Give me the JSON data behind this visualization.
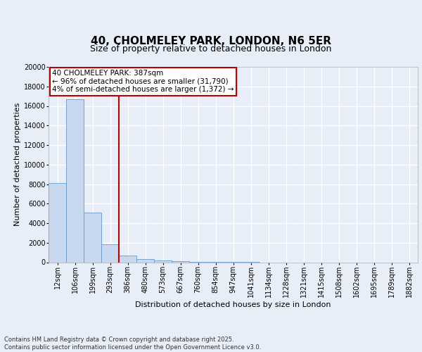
{
  "title1": "40, CHOLMELEY PARK, LONDON, N6 5ER",
  "title2": "Size of property relative to detached houses in London",
  "xlabel": "Distribution of detached houses by size in London",
  "ylabel": "Number of detached properties",
  "categories": [
    "12sqm",
    "106sqm",
    "199sqm",
    "293sqm",
    "386sqm",
    "480sqm",
    "573sqm",
    "667sqm",
    "760sqm",
    "854sqm",
    "947sqm",
    "1041sqm",
    "1134sqm",
    "1228sqm",
    "1321sqm",
    "1415sqm",
    "1508sqm",
    "1602sqm",
    "1695sqm",
    "1789sqm",
    "1882sqm"
  ],
  "values": [
    8100,
    16650,
    5100,
    1820,
    720,
    310,
    160,
    90,
    50,
    20,
    5,
    2,
    0,
    0,
    0,
    0,
    0,
    0,
    0,
    0,
    0
  ],
  "bar_color": "#c8d9ef",
  "bar_edge_color": "#6699cc",
  "red_line_x": 3.5,
  "red_line_color": "#bb0000",
  "ylim": [
    0,
    20000
  ],
  "yticks": [
    0,
    2000,
    4000,
    6000,
    8000,
    10000,
    12000,
    14000,
    16000,
    18000,
    20000
  ],
  "annotation_text": "40 CHOLMELEY PARK: 387sqm\n← 96% of detached houses are smaller (31,790)\n4% of semi-detached houses are larger (1,372) →",
  "annotation_box_facecolor": "#ffffff",
  "annotation_box_edgecolor": "#bb0000",
  "footer_text": "Contains HM Land Registry data © Crown copyright and database right 2025.\nContains public sector information licensed under the Open Government Licence v3.0.",
  "fig_facecolor": "#e8eef8",
  "ax_facecolor": "#e8eef8",
  "grid_color": "#ffffff",
  "title1_fontsize": 11,
  "title2_fontsize": 9,
  "axis_label_fontsize": 8,
  "tick_fontsize": 7,
  "annotation_fontsize": 7.5,
  "footer_fontsize": 6
}
